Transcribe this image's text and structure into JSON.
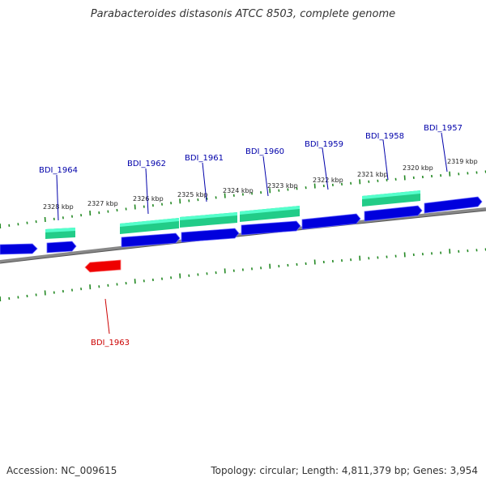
{
  "title": "Parabacteroides distasonis ATCC 8503, complete genome",
  "footer": {
    "accession": "Accession: NC_009615",
    "summary": "Topology: circular; Length: 4,811,379 bp; Genes: 3,954"
  },
  "colors": {
    "gene_forward": "#0000dd",
    "gene_forward_top": "#3333ff",
    "gene_reverse": "#ee0000",
    "gene_rna_like": "#22cc88",
    "gene_rna_like_top": "#55ffcc",
    "backbone": "#888888",
    "tick": "#228822",
    "label_blue": "#0000aa",
    "label_red": "#cc0000"
  },
  "kbp_labels": [
    {
      "text": "2328 kbp"
    },
    {
      "text": "2327 kbp"
    },
    {
      "text": "2326 kbp"
    },
    {
      "text": "2325 kbp"
    },
    {
      "text": "2324 kbp"
    },
    {
      "text": "2323 kbp"
    },
    {
      "text": "2322 kbp"
    },
    {
      "text": "2321 kbp"
    },
    {
      "text": "2320 kbp"
    },
    {
      "text": "2319 kbp"
    }
  ],
  "gene_labels": [
    {
      "text": "BDI_1964",
      "color": "blue"
    },
    {
      "text": "BDI_1962",
      "color": "blue"
    },
    {
      "text": "BDI_1961",
      "color": "blue"
    },
    {
      "text": "BDI_1960",
      "color": "blue"
    },
    {
      "text": "BDI_1959",
      "color": "blue"
    },
    {
      "text": "BDI_1958",
      "color": "blue"
    },
    {
      "text": "BDI_1957",
      "color": "blue"
    },
    {
      "text": "BDI_1963",
      "color": "red"
    }
  ]
}
